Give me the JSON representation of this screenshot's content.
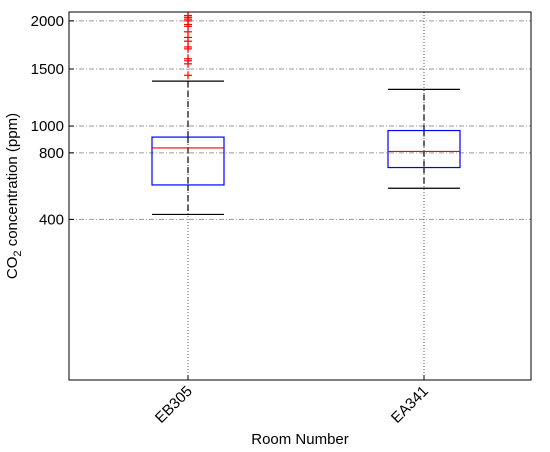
{
  "chart_data": {
    "type": "box",
    "xlabel": "Room Number",
    "ylabel_main": "CO",
    "ylabel_sub": "2",
    "ylabel_rest": " concentration (ppm)",
    "ylim": [
      0,
      2100
    ],
    "yticks": [
      400,
      800,
      1000,
      1500,
      2000
    ],
    "grid": true,
    "colors": {
      "box": "#0000ff",
      "median": "#ff0000",
      "outlier": "#ff0000",
      "whisker": "#000000"
    },
    "categories": [
      "EB305",
      "EA341"
    ],
    "series": [
      {
        "whisker_low": 425,
        "q1": 590,
        "median": 835,
        "q3": 915,
        "whisker_high": 1385,
        "outliers": [
          1440,
          1550,
          1580,
          1600,
          1700,
          1720,
          1780,
          1820,
          1880,
          1940,
          1960,
          2000,
          2020,
          2040,
          2060
        ]
      },
      {
        "whisker_low": 570,
        "q1": 700,
        "median": 810,
        "q3": 965,
        "whisker_high": 1310,
        "outliers": []
      }
    ]
  }
}
